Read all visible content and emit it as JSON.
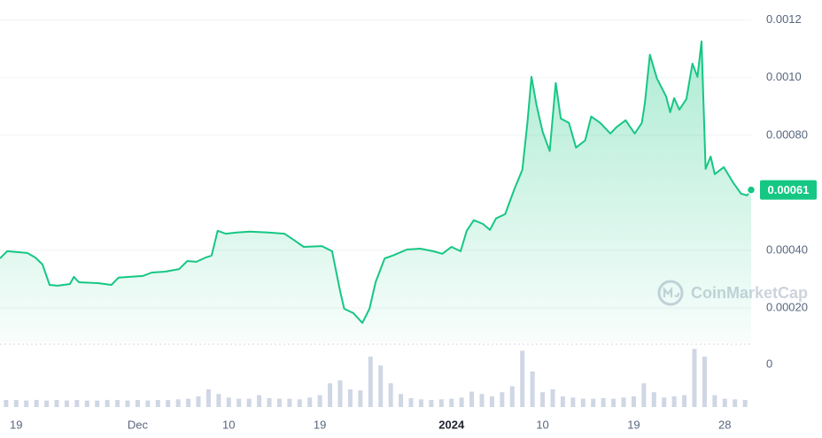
{
  "chart_data": {
    "type": "line",
    "color": "#16c784",
    "current_price": 0.00061,
    "watermark": "CoinMarketCap",
    "volume_axis_label": "0",
    "xlim": [
      -1.6,
      72.6
    ],
    "xticks": [
      {
        "value": 0,
        "label": "19"
      },
      {
        "value": 12,
        "label": "Dec"
      },
      {
        "value": 21,
        "label": "10"
      },
      {
        "value": 30,
        "label": "19"
      },
      {
        "value": 43,
        "label": "2024",
        "bold": true
      },
      {
        "value": 52,
        "label": "10"
      },
      {
        "value": 61,
        "label": "19"
      },
      {
        "value": 70,
        "label": "28"
      }
    ],
    "ylim": [
      8e-05,
      0.00127
    ],
    "yticks": [
      {
        "value": 0.0002,
        "label": "0.00020"
      },
      {
        "value": 0.0004,
        "label": "0.00040"
      },
      {
        "value": 0.0008,
        "label": "0.00080"
      },
      {
        "value": 0.001,
        "label": "0.0010"
      },
      0.0012
    ],
    "grid": true,
    "x": [
      -1.6,
      -0.9,
      1.1,
      1.9,
      2.6,
      3.3,
      4.1,
      5.3,
      5.7,
      6.2,
      8.1,
      9.4,
      10.1,
      11.2,
      12.5,
      13.4,
      14.7,
      16.1,
      16.9,
      17.8,
      18.7,
      19.3,
      19.9,
      20.7,
      21.8,
      23.1,
      24.9,
      26.5,
      27.4,
      28.4,
      30.2,
      31.2,
      32.0,
      32.4,
      33.3,
      34.2,
      34.9,
      35.5,
      36.4,
      37.2,
      38.6,
      39.9,
      41.2,
      42.1,
      43.0,
      43.9,
      44.5,
      45.2,
      46.1,
      46.8,
      47.4,
      48.3,
      49.2,
      50.0,
      50.5,
      50.9,
      51.4,
      52.0,
      52.7,
      53.3,
      53.8,
      54.6,
      55.3,
      56.2,
      56.8,
      57.7,
      58.7,
      59.3,
      60.2,
      61.1,
      61.8,
      62.1,
      62.6,
      63.3,
      64.2,
      64.6,
      65.0,
      65.5,
      66.2,
      66.8,
      67.3,
      67.7,
      68.1,
      68.6,
      69.0,
      69.9,
      70.8,
      71.6,
      72.2,
      72.6
    ],
    "values": [
      0.000372,
      0.000397,
      0.000391,
      0.000375,
      0.000351,
      0.00028,
      0.000277,
      0.000283,
      0.000308,
      0.000289,
      0.000286,
      0.00028,
      0.000305,
      0.000308,
      0.000311,
      0.000323,
      0.000326,
      0.000335,
      0.000363,
      0.00036,
      0.000375,
      0.000382,
      0.000468,
      0.000458,
      0.000462,
      0.000465,
      0.000462,
      0.000458,
      0.000437,
      0.000412,
      0.000415,
      0.000397,
      0.000258,
      0.000197,
      0.000182,
      0.000148,
      0.000197,
      0.000289,
      0.000372,
      0.000382,
      0.000403,
      0.000406,
      0.000397,
      0.000388,
      0.000412,
      0.000397,
      0.000468,
      0.000505,
      0.000492,
      0.000471,
      0.000511,
      0.000526,
      0.000612,
      0.00068,
      0.000843,
      0.001003,
      0.000905,
      0.000812,
      0.000745,
      0.000982,
      0.000858,
      0.000843,
      0.000757,
      0.000782,
      0.000865,
      0.000843,
      0.000806,
      0.000828,
      0.000852,
      0.000806,
      0.000843,
      0.000911,
      0.00108,
      0.000997,
      0.000935,
      0.00088,
      0.000929,
      0.000889,
      0.000926,
      0.001049,
      0.001003,
      0.001126,
      0.000683,
      0.000726,
      0.000665,
      0.000689,
      0.000637,
      0.000597,
      0.000591,
      0.00061
    ],
    "volume": {
      "color": "#cfd6e4",
      "y2lim": [
        0,
        100
      ],
      "x": [
        -1,
        0,
        1,
        2,
        3,
        4,
        5,
        6,
        7,
        8,
        9,
        10,
        11,
        12,
        13,
        14,
        15,
        16,
        17,
        18,
        19,
        20,
        21,
        22,
        23,
        24,
        25,
        26,
        27,
        28,
        29,
        30,
        31,
        32,
        33,
        34,
        35,
        36,
        37,
        38,
        39,
        40,
        41,
        42,
        43,
        44,
        45,
        46,
        47,
        48,
        49,
        50,
        51,
        52,
        53,
        54,
        55,
        56,
        57,
        58,
        59,
        60,
        61,
        62,
        63,
        64,
        65,
        66,
        67,
        68,
        69,
        70,
        71,
        72
      ],
      "values": [
        12,
        12,
        11,
        12,
        11,
        12,
        11,
        12,
        11,
        11,
        12,
        12,
        11,
        12,
        11,
        12,
        12,
        13,
        14,
        18,
        30,
        22,
        16,
        14,
        14,
        20,
        15,
        14,
        14,
        13,
        16,
        20,
        40,
        45,
        30,
        28,
        85,
        70,
        40,
        22,
        15,
        13,
        12,
        13,
        14,
        16,
        26,
        22,
        18,
        25,
        35,
        95,
        60,
        25,
        30,
        18,
        16,
        14,
        14,
        15,
        14,
        16,
        18,
        40,
        25,
        16,
        18,
        20,
        98,
        85,
        20,
        14,
        13,
        12
      ]
    }
  }
}
